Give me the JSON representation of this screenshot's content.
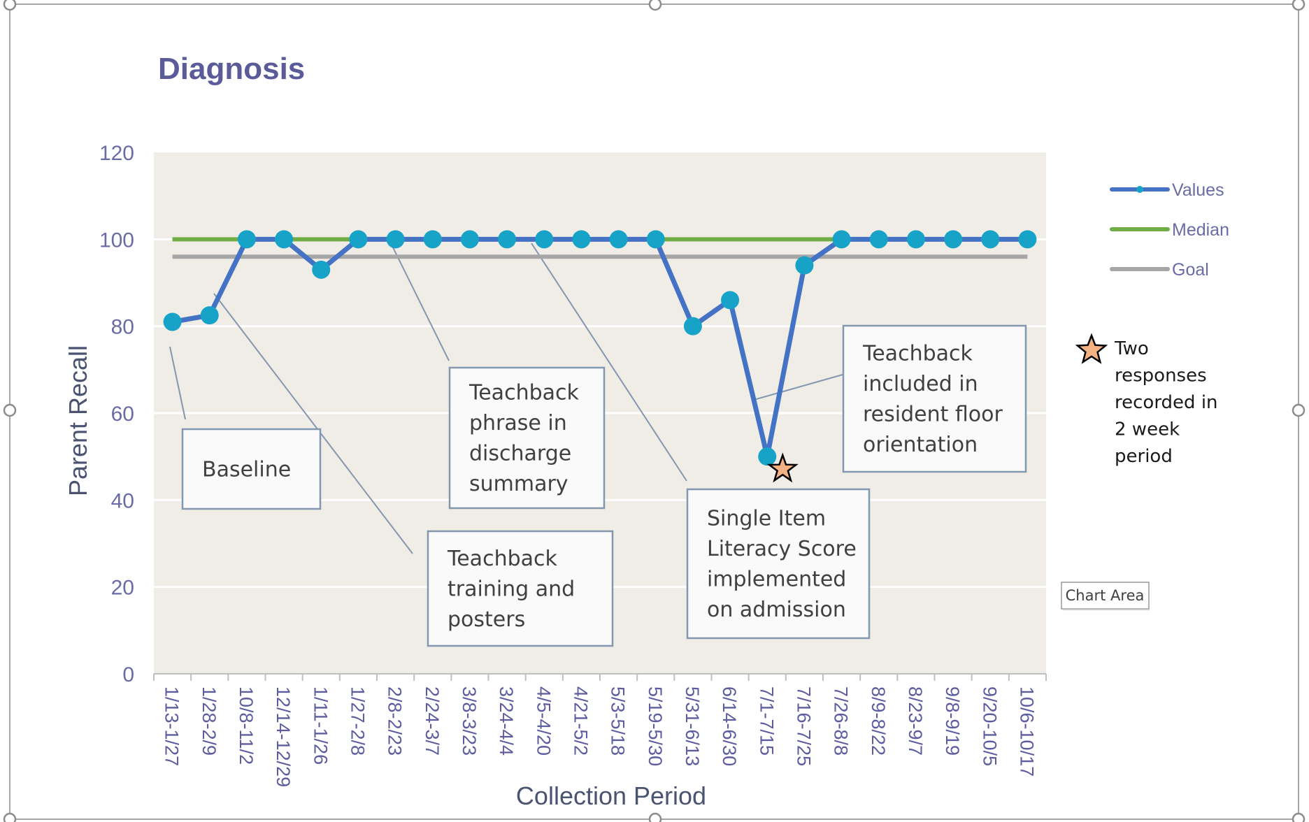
{
  "chart_data": {
    "type": "line",
    "title": "Diagnosis",
    "xlabel": "Collection Period",
    "ylabel": "Parent Recall",
    "ylim": [
      0,
      120
    ],
    "yticks": [
      "0",
      "20",
      "40",
      "60",
      "80",
      "100",
      "120"
    ],
    "grid": true,
    "legend_position": "right",
    "categories": [
      "1/13-1/27",
      "1/28-2/9",
      "10/8-11/2",
      "12/14-12/29",
      "1/11-1/26",
      "1/27-2/8",
      "2/8-2/23",
      "2/24-3/7",
      "3/8-3/23",
      "3/24-4/4",
      "4/5-4/20",
      "4/21-5/2",
      "5/3-5/18",
      "5/19-5/30",
      "5/31-6/13",
      "6/14-6/30",
      "7/1-7/15",
      "7/16-7/25",
      "7/26-8/8",
      "8/9-8/22",
      "8/23-9/7",
      "9/8-9/19",
      "9/20-10/5",
      "10/6-10/17"
    ],
    "series": [
      {
        "name": "Values",
        "color": "#4472C4",
        "marker_color": "#17A2C8",
        "values": [
          81,
          82.5,
          100,
          100,
          93,
          100,
          100,
          100,
          100,
          100,
          100,
          100,
          100,
          100,
          80,
          86,
          50,
          94,
          100,
          100,
          100,
          100,
          100,
          100
        ]
      },
      {
        "name": "Median",
        "color": "#70AD47",
        "values": [
          100,
          100,
          100,
          100,
          100,
          100,
          100,
          100,
          100,
          100,
          100,
          100,
          100,
          100,
          100,
          100,
          100,
          100,
          100,
          100,
          100,
          100,
          100,
          100
        ]
      },
      {
        "name": "Goal",
        "color": "#A6A6A6",
        "values": [
          96,
          96,
          96,
          96,
          96,
          96,
          96,
          96,
          96,
          96,
          96,
          96,
          96,
          96,
          96,
          96,
          96,
          96,
          96,
          96,
          96,
          96,
          96,
          96
        ]
      }
    ],
    "annotations": [
      {
        "lines": [
          "Baseline"
        ],
        "point_index": 0
      },
      {
        "lines": [
          "Teachback",
          "training and",
          "posters"
        ],
        "point_index": 1
      },
      {
        "lines": [
          "Teachback",
          "phrase in",
          "discharge",
          "summary"
        ],
        "point_index": 6
      },
      {
        "lines": [
          "Single Item",
          "Literacy Score",
          "implemented",
          "on admission"
        ],
        "point_index": 10
      },
      {
        "lines": [
          "Teachback",
          "included in",
          "resident floor",
          "orientation"
        ],
        "point_index": 16
      }
    ],
    "star_marker_index": 16,
    "star_color": "#F4B183",
    "note_lines": [
      "Two",
      "responses",
      "recorded in",
      "2 week",
      "period"
    ],
    "tooltip": "Chart Area",
    "plot_background": "#F0ECE6"
  }
}
